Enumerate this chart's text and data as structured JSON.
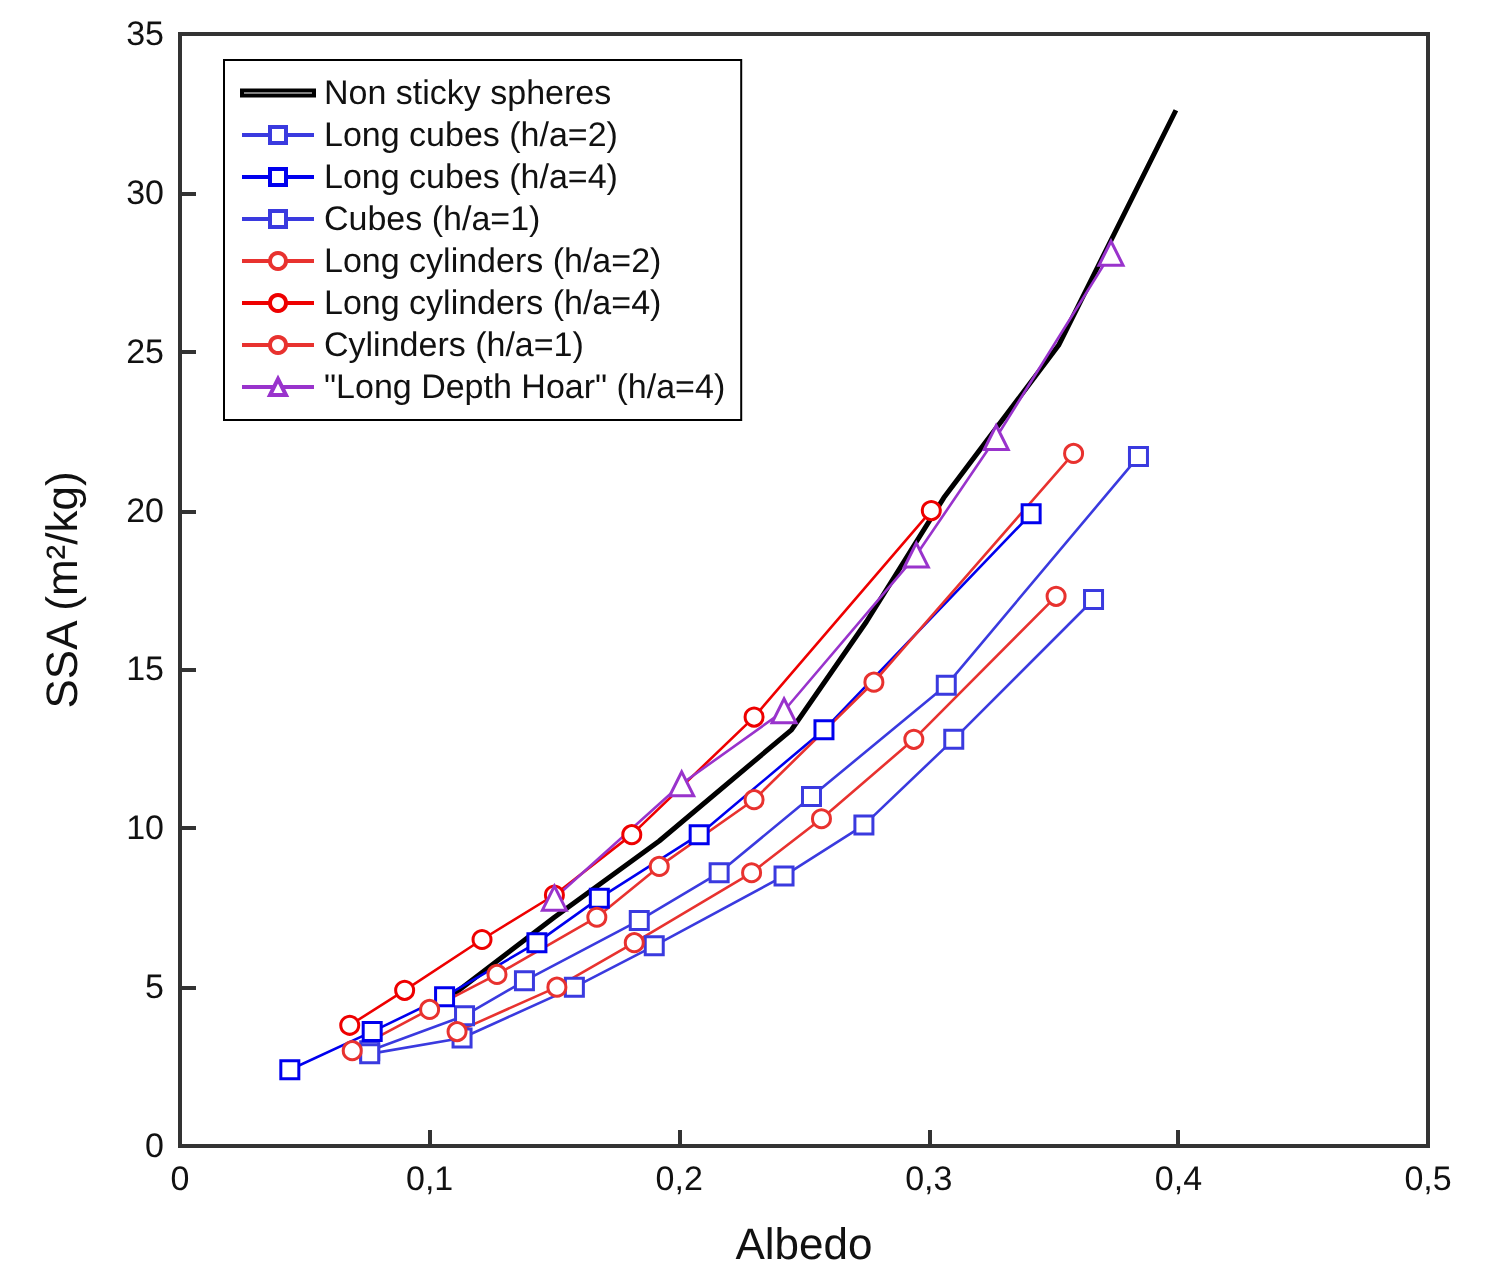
{
  "chart_data": {
    "type": "line",
    "xlabel": "Albedo",
    "ylabel": "SSA (m²/kg)",
    "xlim": [
      0,
      0.5
    ],
    "ylim": [
      0,
      35
    ],
    "xticks": [
      0,
      {
        "value": 0.1,
        "label": "0,1"
      },
      {
        "value": 0.2,
        "label": "0,2"
      },
      {
        "value": 0.3,
        "label": "0,3"
      },
      {
        "value": 0.4,
        "label": "0,4"
      },
      {
        "value": 0.5,
        "label": "0,5"
      }
    ],
    "yticks": [
      0,
      5,
      10,
      15,
      20,
      25,
      30,
      35
    ],
    "grid": false,
    "legend": "top left",
    "line_style": "solid",
    "series": [
      {
        "name": "Non sticky spheres",
        "color": "#000000",
        "marker": "none",
        "x": [
          0.11,
          0.15,
          0.192,
          0.245,
          0.275,
          0.306,
          0.352,
          0.399
        ],
        "values": [
          4.8,
          7.2,
          9.6,
          13.1,
          16.5,
          20.4,
          25.2,
          32.6
        ]
      },
      {
        "name": "Long cubes (h/a=2)",
        "color": "#3a3adf",
        "marker": "square",
        "x": [
          0.076,
          0.114,
          0.138,
          0.184,
          0.216,
          0.253,
          0.307,
          0.384
        ],
        "values": [
          3.0,
          4.1,
          5.2,
          7.1,
          8.6,
          11.0,
          14.5,
          21.7
        ]
      },
      {
        "name": "Long cubes (h/a=4)",
        "color": "#0000ee",
        "marker": "square",
        "x": [
          0.044,
          0.077,
          0.106,
          0.143,
          0.168,
          0.208,
          0.258,
          0.341
        ],
        "values": [
          2.4,
          3.6,
          4.7,
          6.4,
          7.8,
          9.8,
          13.1,
          19.9
        ]
      },
      {
        "name": "Cubes (h/a=1)",
        "color": "#3a3adf",
        "marker": "square",
        "x": [
          0.076,
          0.113,
          0.158,
          0.19,
          0.242,
          0.274,
          0.31,
          0.366
        ],
        "values": [
          2.9,
          3.4,
          5.0,
          6.3,
          8.5,
          10.1,
          12.8,
          17.2
        ]
      },
      {
        "name": "Long cylinders (h/a=2)",
        "color": "#e8322f",
        "marker": "circle",
        "x": [
          0.069,
          0.1,
          0.127,
          0.167,
          0.192,
          0.23,
          0.278,
          0.358
        ],
        "values": [
          3.0,
          4.3,
          5.4,
          7.2,
          8.8,
          10.9,
          14.6,
          21.8
        ]
      },
      {
        "name": "Long cylinders (h/a=4)",
        "color": "#ee0000",
        "marker": "circle",
        "x": [
          0.068,
          0.09,
          0.121,
          0.15,
          0.181,
          0.23,
          0.301
        ],
        "values": [
          3.8,
          4.9,
          6.5,
          7.9,
          9.8,
          13.5,
          20.0
        ]
      },
      {
        "name": "Cylinders (h/a=1)",
        "color": "#e8322f",
        "marker": "circle",
        "x": [
          0.111,
          0.151,
          0.182,
          0.229,
          0.257,
          0.294,
          0.351
        ],
        "values": [
          3.6,
          5.0,
          6.4,
          8.6,
          10.3,
          12.8,
          17.3
        ]
      },
      {
        "name": "\"Long Depth Hoar\" (h/a=4)",
        "color": "#9933cc",
        "marker": "triangle",
        "x": [
          0.15,
          0.201,
          0.242,
          0.295,
          0.327,
          0.373
        ],
        "values": [
          7.8,
          11.4,
          13.7,
          18.6,
          22.3,
          28.1
        ]
      }
    ]
  }
}
